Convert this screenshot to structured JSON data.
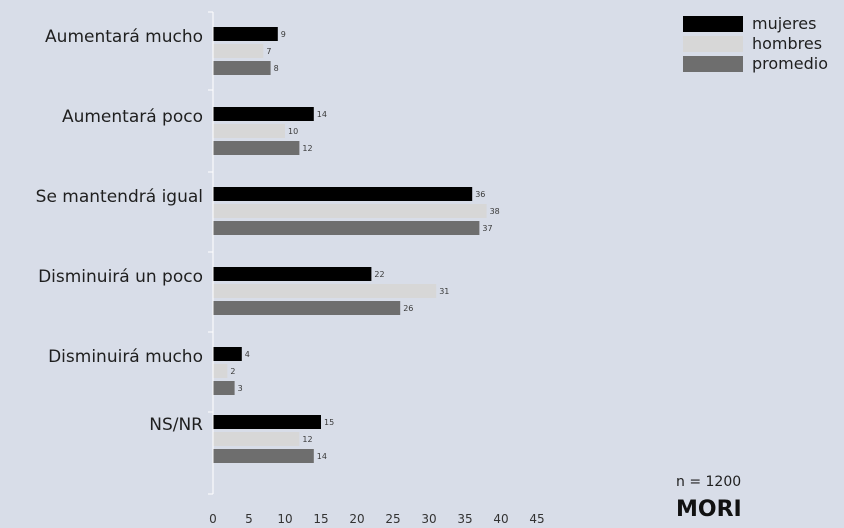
{
  "chart_data": {
    "type": "bar",
    "orientation": "horizontal",
    "categories": [
      "Aumentará mucho",
      "Aumentará poco",
      "Se mantendrá igual",
      "Disminuirá un poco",
      "Disminuirá mucho",
      "NS/NR"
    ],
    "series": [
      {
        "name": "mujeres",
        "color": "#000000",
        "values": [
          9,
          14,
          36,
          22,
          4,
          15
        ]
      },
      {
        "name": "hombres",
        "color": "#d7d7d7",
        "values": [
          7,
          10,
          38,
          31,
          2,
          12
        ]
      },
      {
        "name": "promedio",
        "color": "#6e6e6e",
        "values": [
          8,
          12,
          37,
          26,
          3,
          14
        ]
      }
    ],
    "xlim": [
      0,
      45
    ],
    "xticks": [
      0,
      5,
      10,
      15,
      20,
      25,
      30,
      35,
      40,
      45
    ],
    "title": "",
    "xlabel": "",
    "ylabel": "",
    "legend_position": "top-right",
    "grid": false,
    "data_labels": true
  },
  "footer": {
    "sample_note": "n = 1200",
    "brand": "MORI"
  }
}
